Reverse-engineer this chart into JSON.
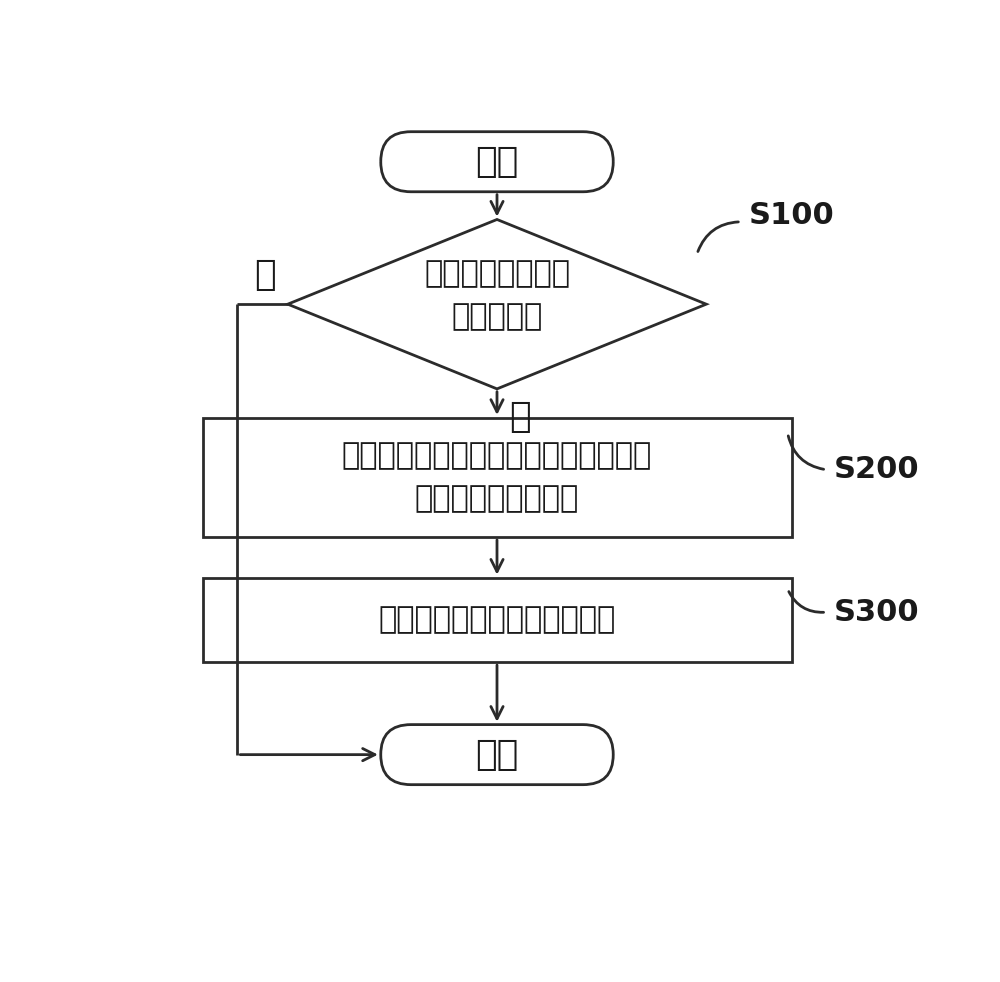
{
  "bg_color": "#ffffff",
  "shape_color": "#ffffff",
  "border_color": "#2b2b2b",
  "text_color": "#1a1a1a",
  "arrow_color": "#2b2b2b",
  "line_width": 2.0,
  "start_label": "开始",
  "diamond_label": "判断敏感数据是否\n具有有效性",
  "s100_label": "S100",
  "rect1_label": "对所述敏感数据进行特殊字符移除，从\n而获得规范敏感数据",
  "s200_label": "S200",
  "rect2_label": "对所述规范敏感数据进行脱敏",
  "s300_label": "S300",
  "end_label": "结束",
  "no_label": "否",
  "yes_label": "是",
  "font_size_main": 26,
  "font_size_step": 22,
  "font_size_label": 22
}
